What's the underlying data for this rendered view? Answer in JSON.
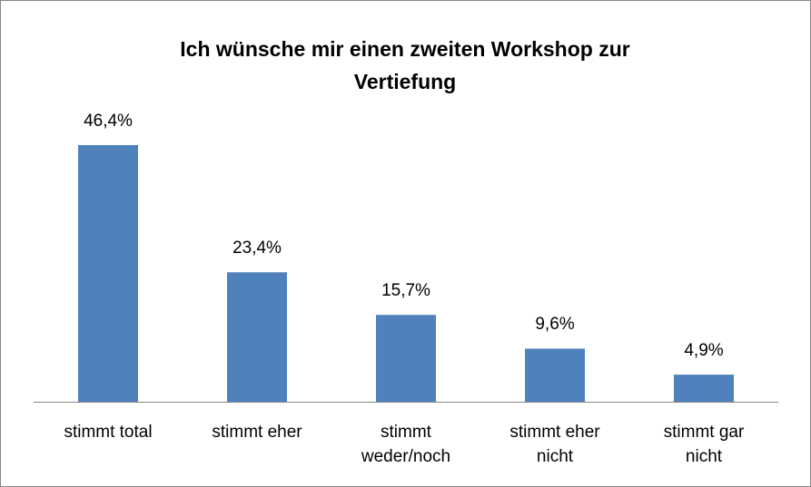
{
  "chart_data": {
    "type": "bar",
    "title": "Ich wünsche mir einen zweiten Workshop zur Vertiefung",
    "categories": [
      "stimmt total",
      "stimmt eher",
      "stimmt weder/noch",
      "stimmt eher nicht",
      "stimmt gar nicht"
    ],
    "values": [
      46.4,
      23.4,
      15.7,
      9.6,
      4.9
    ],
    "value_labels": [
      "46,4%",
      "23,4%",
      "15,7%",
      "9,6%",
      "4,9%"
    ],
    "color": "#4f81bd"
  }
}
